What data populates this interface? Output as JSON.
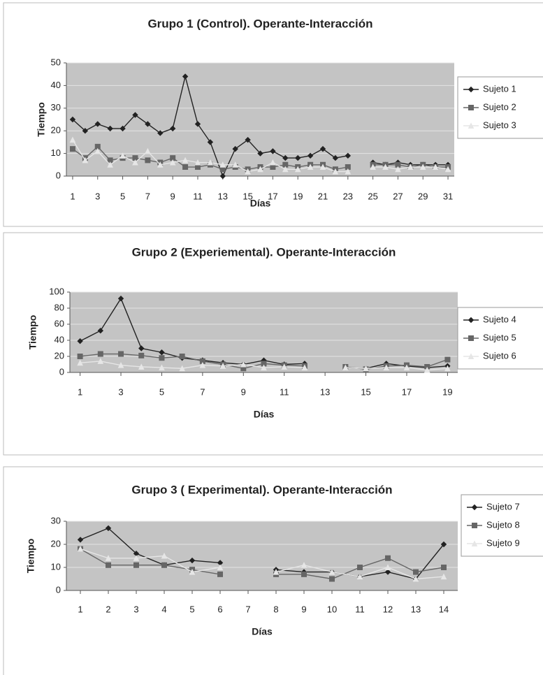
{
  "chart_data": [
    {
      "type": "line",
      "title": "Grupo 1 (Control).  Operante-Interacción",
      "x_label": "Días",
      "y_label": "Tiempo",
      "x": [
        1,
        2,
        3,
        4,
        5,
        6,
        7,
        8,
        9,
        10,
        11,
        12,
        13,
        14,
        15,
        16,
        17,
        18,
        19,
        20,
        21,
        22,
        23,
        24,
        25,
        26,
        27,
        28,
        29,
        30,
        31
      ],
      "xlim": [
        0.5,
        31.5
      ],
      "xticks": [
        1,
        3,
        5,
        7,
        9,
        11,
        13,
        15,
        17,
        19,
        21,
        23,
        25,
        27,
        29,
        31
      ],
      "ylim": [
        0,
        50
      ],
      "yticks": [
        0,
        10,
        20,
        30,
        40,
        50
      ],
      "grid": true,
      "legend": "right",
      "series": [
        {
          "name": "Sujeto 1",
          "color": "#222222",
          "values": [
            25,
            20,
            23,
            21,
            21,
            27,
            23,
            19,
            21,
            44,
            23,
            15,
            0,
            12,
            16,
            10,
            11,
            8,
            8,
            9,
            12,
            8,
            9,
            null,
            6,
            5,
            6,
            5,
            5,
            5,
            5
          ]
        },
        {
          "name": "Sujeto 2",
          "color": "#666666",
          "values": [
            12,
            8,
            13,
            7,
            8,
            8,
            7,
            6,
            8,
            4,
            4,
            5,
            3,
            4,
            3,
            4,
            4,
            5,
            4,
            5,
            5,
            3,
            4,
            null,
            5,
            5,
            5,
            4,
            5,
            4,
            4
          ]
        },
        {
          "name": "Sujeto 3",
          "color": "#e6e6e6",
          "values": [
            16,
            7,
            11,
            5,
            9,
            6,
            11,
            5,
            6,
            7,
            6,
            6,
            5,
            5,
            2,
            3,
            6,
            3,
            3,
            4,
            4,
            2,
            2,
            null,
            4,
            4,
            3,
            4,
            4,
            4,
            3
          ]
        }
      ]
    },
    {
      "type": "line",
      "title": "Grupo 2 (Experiemental).  Operante-Interacción",
      "x_label": "Días",
      "y_label": "Tiempo",
      "x": [
        1,
        2,
        3,
        4,
        5,
        6,
        7,
        8,
        9,
        10,
        11,
        12,
        13,
        14,
        15,
        16,
        17,
        18,
        19
      ],
      "xlim": [
        0.5,
        19.5
      ],
      "xticks": [
        1,
        3,
        5,
        7,
        9,
        11,
        13,
        15,
        17,
        19
      ],
      "ylim": [
        0,
        100
      ],
      "yticks": [
        0,
        20,
        40,
        60,
        80,
        100
      ],
      "grid": true,
      "legend": "right",
      "series": [
        {
          "name": "Sujeto 4",
          "color": "#222222",
          "values": [
            39,
            52,
            92,
            30,
            25,
            18,
            15,
            12,
            10,
            15,
            10,
            11,
            null,
            6,
            5,
            11,
            8,
            6,
            8
          ]
        },
        {
          "name": "Sujeto 5",
          "color": "#666666",
          "values": [
            20,
            23,
            23,
            21,
            18,
            20,
            14,
            10,
            5,
            11,
            9,
            8,
            null,
            7,
            4,
            8,
            9,
            7,
            16
          ]
        },
        {
          "name": "Sujeto 6",
          "color": "#e6e6e6",
          "values": [
            12,
            14,
            9,
            7,
            6,
            5,
            9,
            8,
            10,
            6,
            7,
            6,
            null,
            6,
            5,
            6,
            6,
            3,
            5
          ]
        }
      ]
    },
    {
      "type": "line",
      "title": "Grupo 3 ( Experimental).  Operante-Interacción",
      "x_label": "Días",
      "y_label": "Tiempo",
      "x": [
        1,
        2,
        3,
        4,
        5,
        6,
        7,
        8,
        9,
        10,
        11,
        12,
        13,
        14
      ],
      "xlim": [
        0.5,
        14.5
      ],
      "xticks": [
        1,
        2,
        3,
        4,
        5,
        6,
        7,
        8,
        9,
        10,
        11,
        12,
        13,
        14
      ],
      "ylim": [
        0,
        30
      ],
      "yticks": [
        0,
        10,
        20,
        30
      ],
      "grid": true,
      "legend": "right",
      "series": [
        {
          "name": "Sujeto 7",
          "color": "#222222",
          "values": [
            22,
            27,
            16,
            11,
            13,
            12,
            null,
            9,
            8,
            8,
            6,
            8,
            5,
            20
          ]
        },
        {
          "name": "Sujeto 8",
          "color": "#666666",
          "values": [
            18,
            11,
            11,
            11,
            9,
            7,
            null,
            7,
            7,
            5,
            10,
            14,
            8,
            10
          ]
        },
        {
          "name": "Sujeto 9",
          "color": "#e6e6e6",
          "values": [
            18,
            14,
            14,
            15,
            8,
            10,
            null,
            8,
            11,
            8,
            6,
            10,
            5,
            6
          ]
        }
      ]
    }
  ]
}
